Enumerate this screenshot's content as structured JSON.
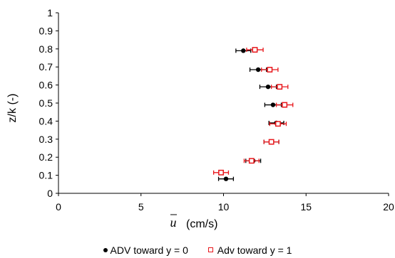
{
  "chart_data": {
    "type": "scatter",
    "xlabel_symbol": "u",
    "xlabel_unit": "(cm/s)",
    "ylabel": "z/k (-)",
    "xlim": [
      0,
      20
    ],
    "ylim": [
      0,
      1
    ],
    "xticks": [
      "0",
      "5",
      "10",
      "15",
      "20"
    ],
    "yticks": [
      "0",
      "0.1",
      "0.2",
      "0.3",
      "0.4",
      "0.5",
      "0.6",
      "0.7",
      "0.8",
      "0.9",
      "1"
    ],
    "legend_position": "bottom",
    "series": [
      {
        "name": "ADV toward y = 0",
        "color": "#000000",
        "marker": "filled-circle",
        "points": [
          {
            "x": 11.2,
            "y": 0.79,
            "xerr": 0.45
          },
          {
            "x": 12.1,
            "y": 0.685,
            "xerr": 0.5
          },
          {
            "x": 12.7,
            "y": 0.59,
            "xerr": 0.5
          },
          {
            "x": 13.0,
            "y": 0.49,
            "xerr": 0.5
          },
          {
            "x": 13.2,
            "y": 0.39,
            "xerr": 0.45
          },
          {
            "x": 12.9,
            "y": 0.285,
            "xerr": 0.45
          },
          {
            "x": 11.8,
            "y": 0.18,
            "xerr": 0.45
          },
          {
            "x": 10.15,
            "y": 0.08,
            "xerr": 0.45
          }
        ]
      },
      {
        "name": "Adv toward y = 1",
        "color": "#e8161b",
        "marker": "open-square",
        "points": [
          {
            "x": 11.9,
            "y": 0.795,
            "xerr": 0.5
          },
          {
            "x": 12.8,
            "y": 0.685,
            "xerr": 0.5
          },
          {
            "x": 13.4,
            "y": 0.59,
            "xerr": 0.5
          },
          {
            "x": 13.7,
            "y": 0.49,
            "xerr": 0.5
          },
          {
            "x": 13.3,
            "y": 0.385,
            "xerr": 0.5
          },
          {
            "x": 12.9,
            "y": 0.285,
            "xerr": 0.45
          },
          {
            "x": 11.7,
            "y": 0.18,
            "xerr": 0.45
          },
          {
            "x": 9.85,
            "y": 0.115,
            "xerr": 0.45
          }
        ]
      }
    ]
  }
}
